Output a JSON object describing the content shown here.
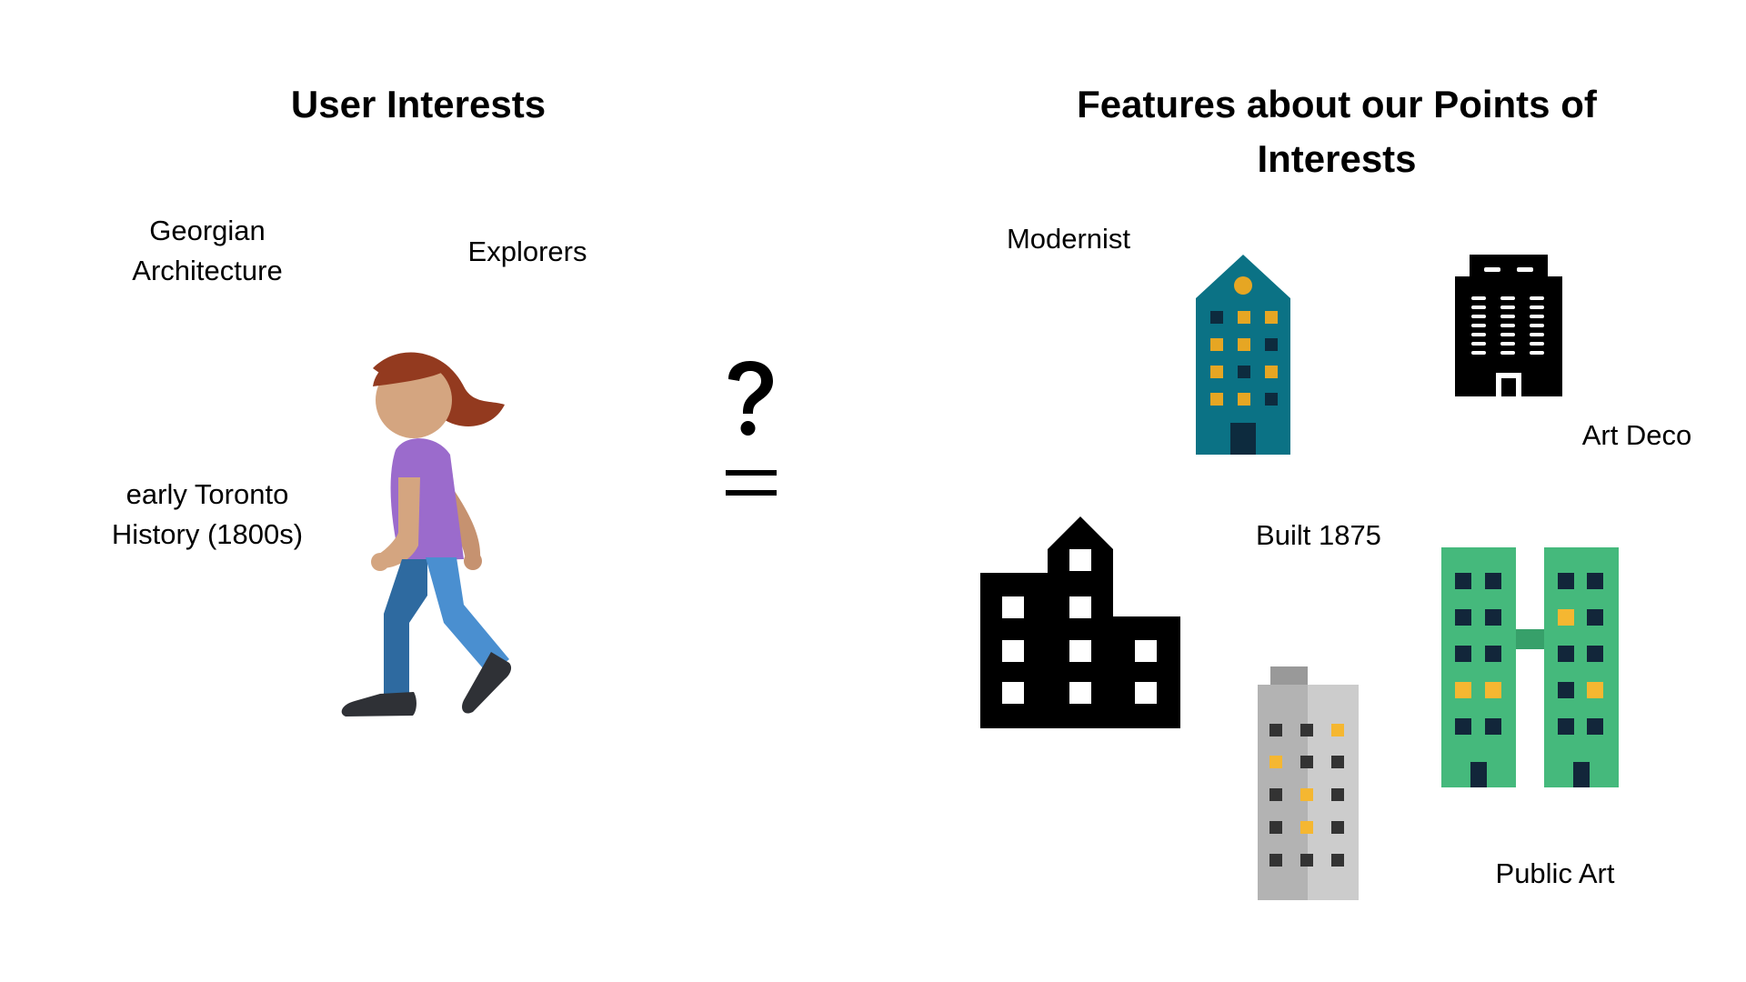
{
  "headings": {
    "user_interests": "User Interests",
    "features_line1": "Features about our Points of",
    "features_line2": "Interests"
  },
  "user_interests": {
    "georgian_line1": "Georgian",
    "georgian_line2": "Architecture",
    "explorers": "Explorers",
    "toronto_line1": "early Toronto",
    "toronto_line2": "History (1800s)"
  },
  "poi_features": {
    "modernist": "Modernist",
    "art_deco": "Art Deco",
    "built": "Built 1875",
    "public_art": "Public Art"
  },
  "symbols": {
    "question": "?",
    "equals": "="
  },
  "colors": {
    "teal_building": "#0b7285",
    "window_yellow": "#e6a623",
    "green_building": "#45b97c",
    "gray_building": "#b3b3b3",
    "person_shirt": "#9b6bcc",
    "person_hair": "#933a1f",
    "person_skin": "#d4a580",
    "person_jeans": "#3d85c6"
  }
}
